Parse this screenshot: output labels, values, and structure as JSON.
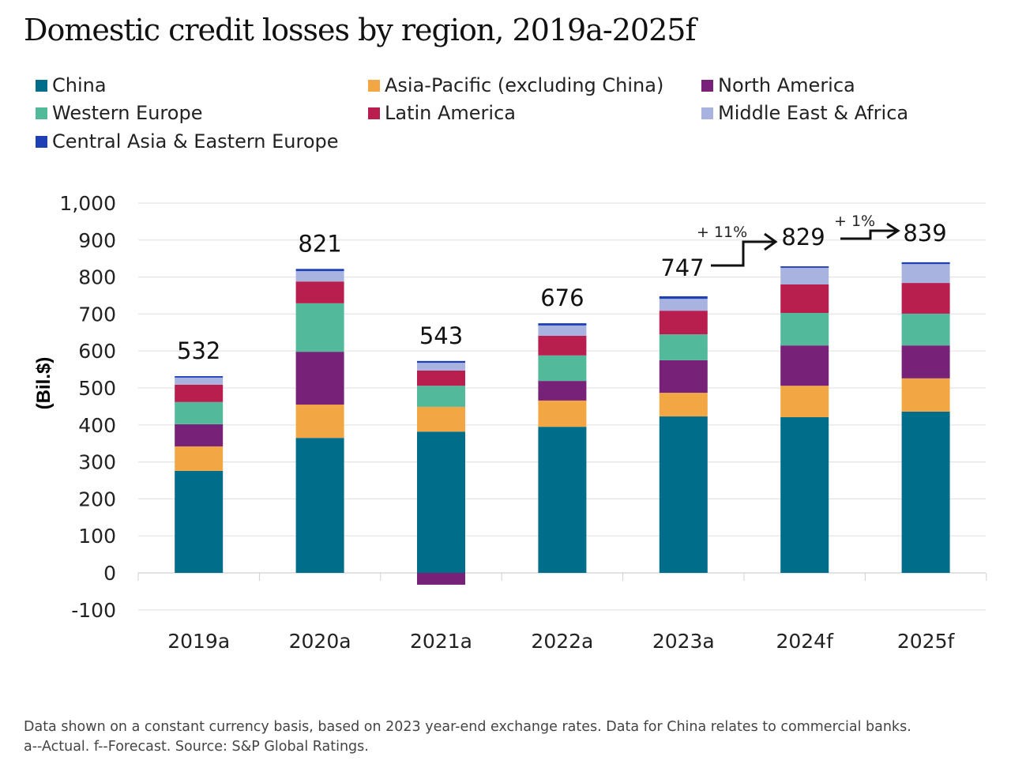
{
  "chart_data": {
    "type": "bar",
    "stacked": true,
    "title": "Domestic credit losses by region, 2019a-2025f",
    "ylabel": "(Bil.$)",
    "xlabel": "",
    "ylim": [
      -100,
      1000
    ],
    "yticks": [
      "1,000",
      "900",
      "800",
      "700",
      "600",
      "500",
      "400",
      "300",
      "200",
      "100",
      "0",
      "-100"
    ],
    "ytick_values": [
      1000,
      900,
      800,
      700,
      600,
      500,
      400,
      300,
      200,
      100,
      0,
      -100
    ],
    "grid": true,
    "legend_position": "top",
    "categories": [
      "2019a",
      "2020a",
      "2021a",
      "2022a",
      "2023a",
      "2024f",
      "2025f"
    ],
    "series": [
      {
        "name": "China",
        "color": "#006e8a",
        "values": [
          276,
          365,
          382,
          395,
          423,
          421,
          436
        ]
      },
      {
        "name": "Asia-Pacific (excluding China)",
        "color": "#f2a744",
        "values": [
          66,
          90,
          67,
          71,
          64,
          85,
          90
        ]
      },
      {
        "name": "North America",
        "color": "#782178",
        "values": [
          60,
          143,
          -32,
          53,
          88,
          109,
          89
        ]
      },
      {
        "name": "Western Europe",
        "color": "#52b99a",
        "values": [
          60,
          131,
          57,
          69,
          70,
          88,
          86
        ]
      },
      {
        "name": "Latin America",
        "color": "#b81f4f",
        "values": [
          47,
          59,
          41,
          53,
          64,
          77,
          83
        ]
      },
      {
        "name": "Middle East & Africa",
        "color": "#a8b3e0",
        "values": [
          19,
          28,
          21,
          28,
          32,
          45,
          51
        ]
      },
      {
        "name": "Central Asia & Eastern Europe",
        "color": "#1f3fb5",
        "values": [
          4,
          6,
          5,
          6,
          7,
          4,
          5
        ]
      }
    ],
    "totals": [
      "532",
      "821",
      "543",
      "676",
      "747",
      "829",
      "839"
    ],
    "annotations": [
      "+ 11%",
      "+ 1%"
    ]
  },
  "footnote": [
    "Data shown on a constant currency basis, based on 2023 year-end exchange rates. Data for China relates to commercial banks.",
    "a--Actual. f--Forecast. Source: S&P Global Ratings."
  ]
}
